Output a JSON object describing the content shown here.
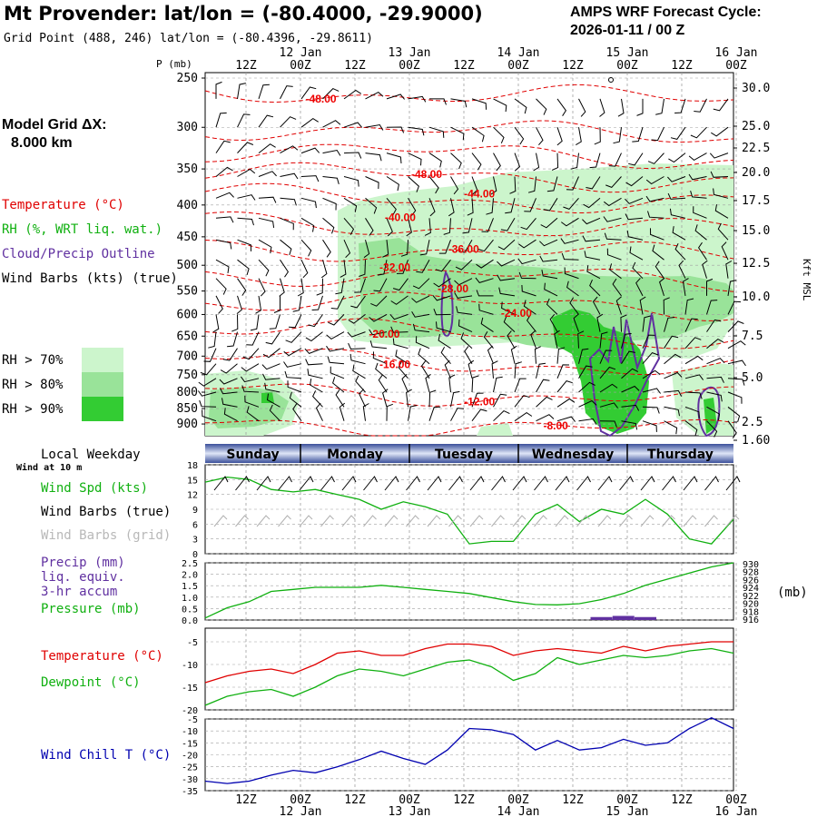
{
  "header": {
    "title": "Mt Provender:  lat/lon = (-80.4000, -29.9000)",
    "subtitle": "Grid Point (488, 246) lat/lon = (-80.4396, -29.8611)",
    "cycle_line1": "AMPS WRF Forecast Cycle:",
    "cycle_line2": "2026-01-11 / 00  Z",
    "grid_label_1": "Model Grid ΔX:",
    "grid_label_2": "8.000 km"
  },
  "colors": {
    "temperature": "#e00000",
    "rh": "#10b010",
    "cloud": "#6030a0",
    "wind": "#000000",
    "wind_grid": "#b0b0b0",
    "windchill": "#0000b0",
    "rh70": "#ccf5cc",
    "rh80": "#99e399",
    "rh90": "#33cc33",
    "daybar": "#3850a0",
    "grid": "#a0a0a0"
  },
  "legend": {
    "temperature": "Temperature (°C)",
    "rh": "RH (%, WRT liq. wat.)",
    "cloud": "Cloud/Precip Outline",
    "wind": "Wind Barbs (kts) (true)",
    "rh70": "RH > 70%",
    "rh80": "RH > 80%",
    "rh90": "RH > 90%",
    "local_weekday": "Local Weekday",
    "wind_at": "Wind at 10 m",
    "wind_spd": "Wind Spd (kts)",
    "wind_barbs_true": "Wind Barbs (true)",
    "wind_barbs_grid": "Wind Barbs (grid)",
    "precip_1": "Precip (mm)",
    "precip_2": "liq. equiv.",
    "precip_3": "3-hr accum",
    "pressure": "Pressure (mb)",
    "pressure_unit": "(mb)",
    "temp2": "Temperature (°C)",
    "dewpoint": "Dewpoint (°C)",
    "windchill": "Wind Chill T (°C)",
    "p_axis": "P (mb)",
    "kft_axis": "Kft MSL"
  },
  "time_axis": {
    "hour_labels": [
      "12Z",
      "00Z",
      "12Z",
      "00Z",
      "12Z",
      "00Z",
      "12Z",
      "00Z",
      "12Z",
      "00Z"
    ],
    "date_labels": [
      "12 Jan",
      "13 Jan",
      "14 Jan",
      "15 Jan",
      "16 Jan"
    ],
    "weekdays": [
      "Sunday",
      "Monday",
      "Tuesday",
      "Wednesday",
      "Thursday"
    ]
  },
  "chart_data": [
    {
      "type": "heatmap",
      "panel": "cross-section",
      "ylabel": "P (mb)",
      "y_ticks_left": [
        "250",
        "300",
        "350",
        "400",
        "450",
        "500",
        "550",
        "600",
        "650",
        "700",
        "750",
        "800",
        "850",
        "900"
      ],
      "y_ticks_right": [
        "30.0",
        "25.0",
        "22.5",
        "20.0",
        "17.5",
        "15.0",
        "12.5",
        "10.0",
        "7.5",
        "5.0",
        "2.5",
        "1.60"
      ],
      "y_right_label": "Kft MSL",
      "isotherm_labels": [
        {
          "label": "-48.00",
          "t": 0.19,
          "p": 270
        },
        {
          "label": "-48.00",
          "t": 0.39,
          "p": 357
        },
        {
          "label": "-44.00",
          "t": 0.49,
          "p": 384
        },
        {
          "label": "-40.00",
          "t": 0.34,
          "p": 419
        },
        {
          "label": "-36.00",
          "t": 0.46,
          "p": 471
        },
        {
          "label": "-32.00",
          "t": 0.33,
          "p": 504
        },
        {
          "label": "-28.00",
          "t": 0.44,
          "p": 545
        },
        {
          "label": "-24.00",
          "t": 0.56,
          "p": 597
        },
        {
          "label": "-20.00",
          "t": 0.31,
          "p": 645
        },
        {
          "label": "-16.00",
          "t": 0.33,
          "p": 722
        },
        {
          "label": "-12.00",
          "t": 0.49,
          "p": 829
        },
        {
          "label": "-8.00",
          "t": 0.64,
          "p": 906
        }
      ]
    },
    {
      "type": "line",
      "panel": "surface wind",
      "y_ticks": [
        "0",
        "3",
        "6",
        "9",
        "12",
        "15",
        "18"
      ],
      "ylim": [
        0,
        18
      ],
      "series": [
        {
          "name": "Wind Spd (kts)",
          "values": [
            14.5,
            15.5,
            15,
            13,
            12.5,
            13,
            12,
            11,
            9,
            10.5,
            9.5,
            8,
            2,
            2.5,
            2.5,
            8,
            10,
            6.5,
            9,
            8,
            11,
            8,
            3,
            2,
            7
          ]
        }
      ]
    },
    {
      "type": "line",
      "panel": "precip/pressure",
      "y_ticks": [
        "0.0",
        "0.5",
        "1.0",
        "1.5",
        "2.0",
        "2.5"
      ],
      "y_ticks_right": [
        "930",
        "928",
        "926",
        "924",
        "922",
        "920",
        "918",
        "916"
      ],
      "series": [
        {
          "name": "Pressure (mb)",
          "values": [
            916.5,
            919,
            920.5,
            923,
            923.5,
            924,
            924,
            924,
            924.5,
            924,
            923.5,
            923,
            922.5,
            921.5,
            920.5,
            919.8,
            919.7,
            920,
            921,
            922.5,
            924.5,
            926,
            927.5,
            929,
            930
          ]
        },
        {
          "name": "Precip (mm)",
          "values": [
            0,
            0,
            0,
            0,
            0,
            0,
            0,
            0,
            0,
            0,
            0,
            0,
            0,
            0,
            0,
            0,
            0,
            0,
            0.05,
            0.1,
            0.05,
            0,
            0,
            0,
            0
          ]
        }
      ]
    },
    {
      "type": "line",
      "panel": "temperature/dewpoint",
      "y_ticks": [
        "-5",
        "-10",
        "-15",
        "-20"
      ],
      "ylim": [
        -20,
        -2
      ],
      "series": [
        {
          "name": "Temperature (°C)",
          "values": [
            -14,
            -12.5,
            -11.5,
            -11,
            -12,
            -10,
            -7.5,
            -7,
            -8,
            -8,
            -6.5,
            -5.5,
            -5.5,
            -6,
            -8,
            -7,
            -6.5,
            -7,
            -7.5,
            -6,
            -7,
            -6,
            -5.5,
            -5,
            -5
          ]
        },
        {
          "name": "Dewpoint (°C)",
          "values": [
            -19,
            -17,
            -16,
            -15.5,
            -17,
            -15,
            -12.5,
            -11,
            -11.5,
            -12.5,
            -11,
            -9.5,
            -9,
            -10.5,
            -13.5,
            -12,
            -8.5,
            -10,
            -9,
            -8,
            -8.5,
            -8,
            -7,
            -6.5,
            -7.5
          ]
        }
      ]
    },
    {
      "type": "line",
      "panel": "wind chill",
      "y_ticks": [
        "-5",
        "-10",
        "-15",
        "-20",
        "-25",
        "-30",
        "-35"
      ],
      "ylim": [
        -35,
        -5
      ],
      "series": [
        {
          "name": "Wind Chill T (°C)",
          "values": [
            -31,
            -32,
            -31,
            -28.5,
            -26.5,
            -27.5,
            -25,
            -22,
            -18.5,
            -21.5,
            -24,
            -18,
            -9,
            -9.5,
            -11.5,
            -18,
            -14,
            -18,
            -17,
            -13.5,
            -16,
            -15,
            -9,
            -4.5,
            -9
          ]
        }
      ]
    }
  ]
}
